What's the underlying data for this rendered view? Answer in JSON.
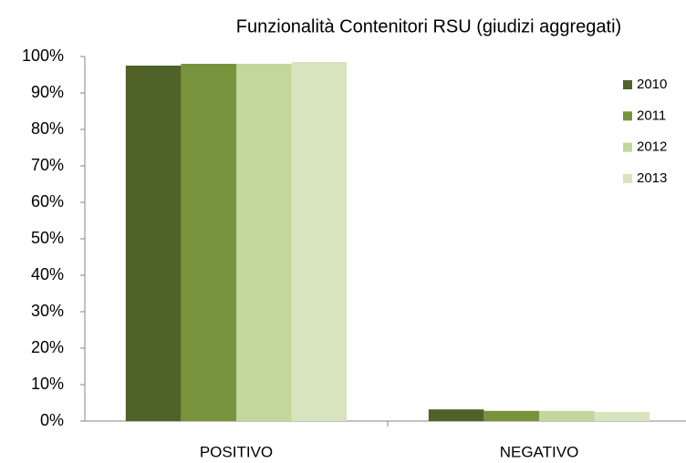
{
  "chart_data": {
    "type": "bar",
    "title": "Funzionalità Contenitori RSU (giudizi aggregati)",
    "categories": [
      "POSITIVO",
      "NEGATIVO"
    ],
    "series": [
      {
        "name": "2010",
        "color": "#4f6228",
        "values": [
          97.5,
          3.2
        ]
      },
      {
        "name": "2011",
        "color": "#77933c",
        "values": [
          98,
          2.8
        ]
      },
      {
        "name": "2012",
        "color": "#c3d69b",
        "values": [
          98,
          2.8
        ]
      },
      {
        "name": "2013",
        "color": "#d7e4bd",
        "values": [
          98.5,
          2.5
        ]
      }
    ],
    "ylim": [
      0,
      100
    ],
    "yticks": [
      {
        "value": 0,
        "label": "0%"
      },
      {
        "value": 10,
        "label": "10%"
      },
      {
        "value": 20,
        "label": "20%"
      },
      {
        "value": 30,
        "label": "30%"
      },
      {
        "value": 40,
        "label": "40%"
      },
      {
        "value": 50,
        "label": "50%"
      },
      {
        "value": 60,
        "label": "60%"
      },
      {
        "value": 70,
        "label": "70%"
      },
      {
        "value": 80,
        "label": "80%"
      },
      {
        "value": 90,
        "label": "90%"
      },
      {
        "value": 100,
        "label": "100%"
      }
    ],
    "legend": "right"
  }
}
